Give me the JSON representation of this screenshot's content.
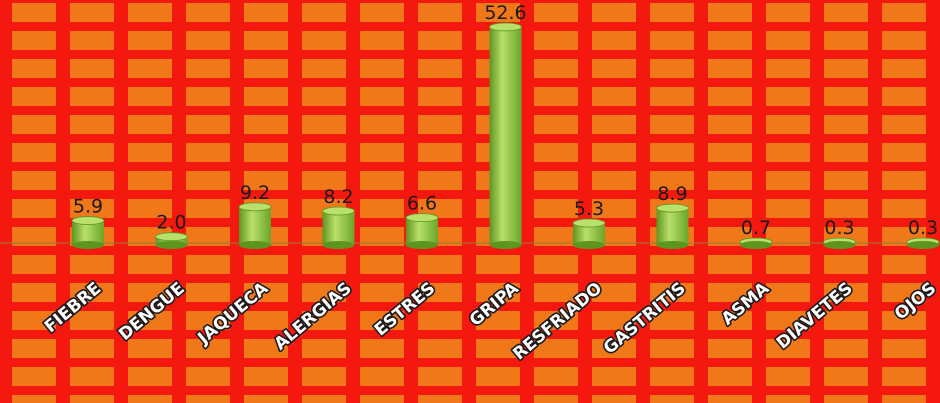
{
  "theme": {
    "background": "#f5180e",
    "grid_fill": "#ee8a1a",
    "bar_color": "#8ac43a",
    "bar_dark": "#5e9420",
    "bar_light": "#b8e06a",
    "label_color": "#1a1a1a"
  },
  "chart_data": {
    "type": "bar",
    "categories": [
      "FIEBRE",
      "DENGUE",
      "JAQUECA",
      "ALERGIAS",
      "ESTRES",
      "GRIPA",
      "RESFRIADO",
      "GASTRITIS",
      "ASMA",
      "DIAVETES",
      "OJOS"
    ],
    "values": [
      5.9,
      2.0,
      9.2,
      8.2,
      6.6,
      52.6,
      5.3,
      8.9,
      0.7,
      0.3,
      0.3
    ],
    "value_labels": [
      "5.9",
      "2.0",
      "9.2",
      "8.2",
      "6.6",
      "52.6",
      "5.3",
      "8.9",
      "0.7",
      "0.3",
      "0.3"
    ],
    "ylim": [
      0,
      55
    ],
    "grid": true,
    "legend": "none"
  }
}
